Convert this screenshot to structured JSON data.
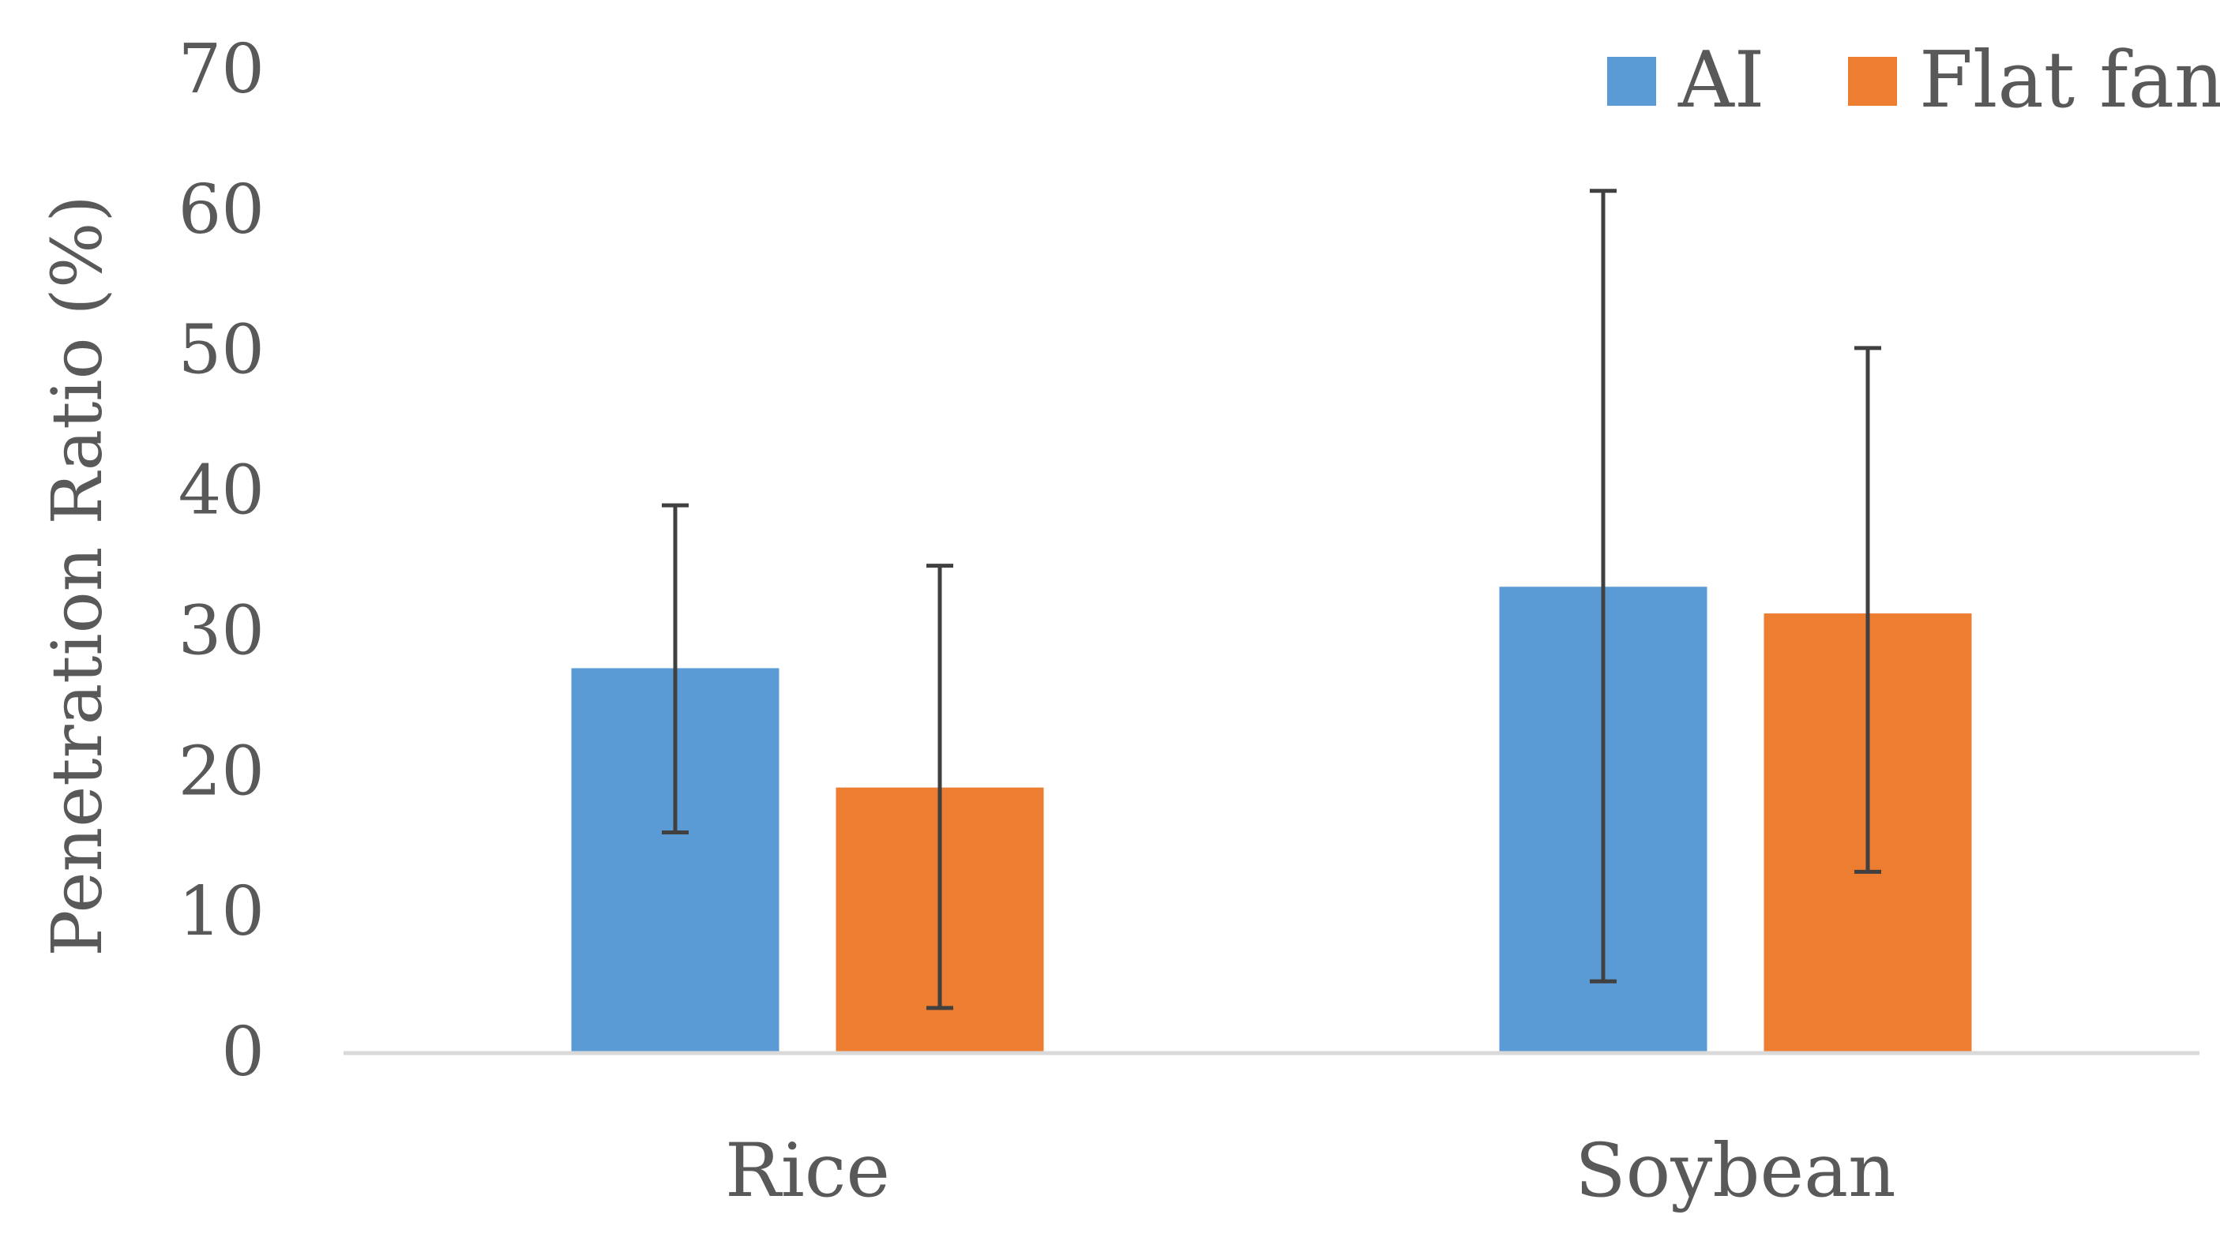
{
  "chart_data": {
    "type": "bar",
    "title": "",
    "xlabel": "",
    "ylabel": "Penetration Ratio (%)",
    "ylim": [
      0,
      70
    ],
    "yticks": [
      0,
      10,
      20,
      30,
      40,
      50,
      60,
      70
    ],
    "grid": false,
    "legend_position": "top-right",
    "categories": [
      "Rice",
      "Soybean"
    ],
    "series": [
      {
        "name": "AI",
        "color": "#5B9BD5",
        "values": [
          27.3,
          33.1
        ],
        "error_low": [
          15.6,
          5.0
        ],
        "error_high": [
          38.9,
          61.3
        ]
      },
      {
        "name": "Flat fan",
        "color": "#ED7D31",
        "values": [
          18.8,
          31.2
        ],
        "error_low": [
          3.1,
          12.8
        ],
        "error_high": [
          34.6,
          50.1
        ]
      }
    ],
    "colors": {
      "axis": "#D9D9D9",
      "text": "#595959",
      "errorbar": "#404040"
    }
  }
}
